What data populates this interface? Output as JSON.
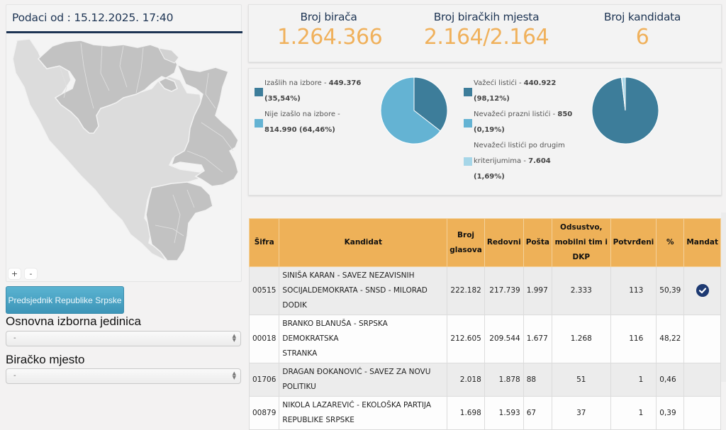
{
  "left": {
    "date_label": "Podaci od : 15.12.2025. 17:40",
    "zoom_in": "+",
    "zoom_out": "-",
    "office_button": "Predsjednik Republike Srpske",
    "unit_label": "Osnovna izborna jedinica",
    "unit_value": "-",
    "station_label": "Biračko mjesto",
    "station_value": "-"
  },
  "stats": {
    "voters_label": "Broj birača",
    "voters_value": "1.264.366",
    "stations_label": "Broj biračkih mjesta",
    "stations_value": "2.164/2.164",
    "candidates_label": "Broj kandidata",
    "candidates_value": "6"
  },
  "colors": {
    "dark_blue": "#3d7d9a",
    "mid_blue": "#64b3d3",
    "light_blue": "#a6d6e8",
    "accent_orange": "#f0b15c",
    "header_orange": "#eeb158",
    "title_navy": "#1d3453",
    "mandate_navy": "#1e3a72"
  },
  "chart_data": [
    {
      "type": "pie",
      "title": "Turnout",
      "legend_position": "left",
      "slices": [
        {
          "label": "Izašlih na izbore",
          "count": "449.376",
          "pct_text": "(35,54%)",
          "value": 35.54,
          "color": "#3d7d9a"
        },
        {
          "label": "Nije izašlo na izbore",
          "count": "814.990",
          "pct_text": "(64,46%)",
          "value": 64.46,
          "color": "#64b3d3"
        }
      ]
    },
    {
      "type": "pie",
      "title": "Ballots",
      "legend_position": "left",
      "slices": [
        {
          "label": "Važeći listići",
          "count": "440.922",
          "pct_text": "(98,12%)",
          "value": 98.12,
          "color": "#3d7d9a"
        },
        {
          "label": "Nevažeći prazni listići",
          "count": "850",
          "pct_text": "(0,19%)",
          "value": 0.19,
          "color": "#64b3d3"
        },
        {
          "label": "Nevažeći listići po drugim kriterijumima",
          "count": "7.604",
          "pct_text": "(1,69%)",
          "value": 1.69,
          "color": "#a6d6e8"
        }
      ]
    }
  ],
  "legend_text": {
    "turnout_0_a": "Izašlih na izbore - ",
    "turnout_0_b": "449.376",
    "turnout_0_c": "(35,54%)",
    "turnout_1_a": "Nije izašlo na izbore -",
    "turnout_1_b": "814.990 (64,46%)",
    "ballots_0_a": "Važeći listići - ",
    "ballots_0_b": "440.922",
    "ballots_0_c": "(98,12%)",
    "ballots_1_a": "Nevažeći prazni listići - ",
    "ballots_1_b": "850",
    "ballots_1_c": "(0,19%)",
    "ballots_2_a": "Nevažeći listići po drugim",
    "ballots_2_b": "kriterijumima - ",
    "ballots_2_c": "7.604",
    "ballots_2_d": "(1,69%)"
  },
  "table": {
    "headers": {
      "code": "Šifra",
      "candidate": "Kandidat",
      "votes_1": "Broj",
      "votes_2": "glasova",
      "regular": "Redovni",
      "mail": "Pošta",
      "absent_1": "Odsustvo,",
      "absent_2": "mobilni tim i",
      "absent_3": "DKP",
      "confirmed": "Potvrđeni",
      "pct": "%",
      "mandate": "Mandat"
    },
    "rows": [
      {
        "code": "00515",
        "candidate_1": "SINIŠA KARAN - SAVEZ NEZAVISNIH",
        "candidate_2": "SOCIJALDEMOKRATA - SNSD - MILORAD DODIK",
        "votes": "222.182",
        "regular": "217.739",
        "mail": "1.997",
        "absent": "2.333",
        "confirmed": "113",
        "pct": "50,39",
        "mandate": true
      },
      {
        "code": "00018",
        "candidate_1": "BRANKO BLANUŠA - SRPSKA DEMOKRATSKA",
        "candidate_2": "STRANKA",
        "votes": "212.605",
        "regular": "209.544",
        "mail": "1.677",
        "absent": "1.268",
        "confirmed": "116",
        "pct": "48,22",
        "mandate": false
      },
      {
        "code": "01706",
        "candidate_1": "DRAGAN ĐOKANOVIĆ - SAVEZ ZA NOVU POLITIKU",
        "candidate_2": "",
        "votes": "2.018",
        "regular": "1.878",
        "mail": "88",
        "absent": "51",
        "confirmed": "1",
        "pct": "0,46",
        "mandate": false
      },
      {
        "code": "00879",
        "candidate_1": "NIKOLA LAZAREVIĆ - EKOLOŠKA PARTIJA",
        "candidate_2": "REPUBLIKE SRPSKE",
        "votes": "1.698",
        "regular": "1.593",
        "mail": "67",
        "absent": "37",
        "confirmed": "1",
        "pct": "0,39",
        "mandate": false
      }
    ]
  }
}
